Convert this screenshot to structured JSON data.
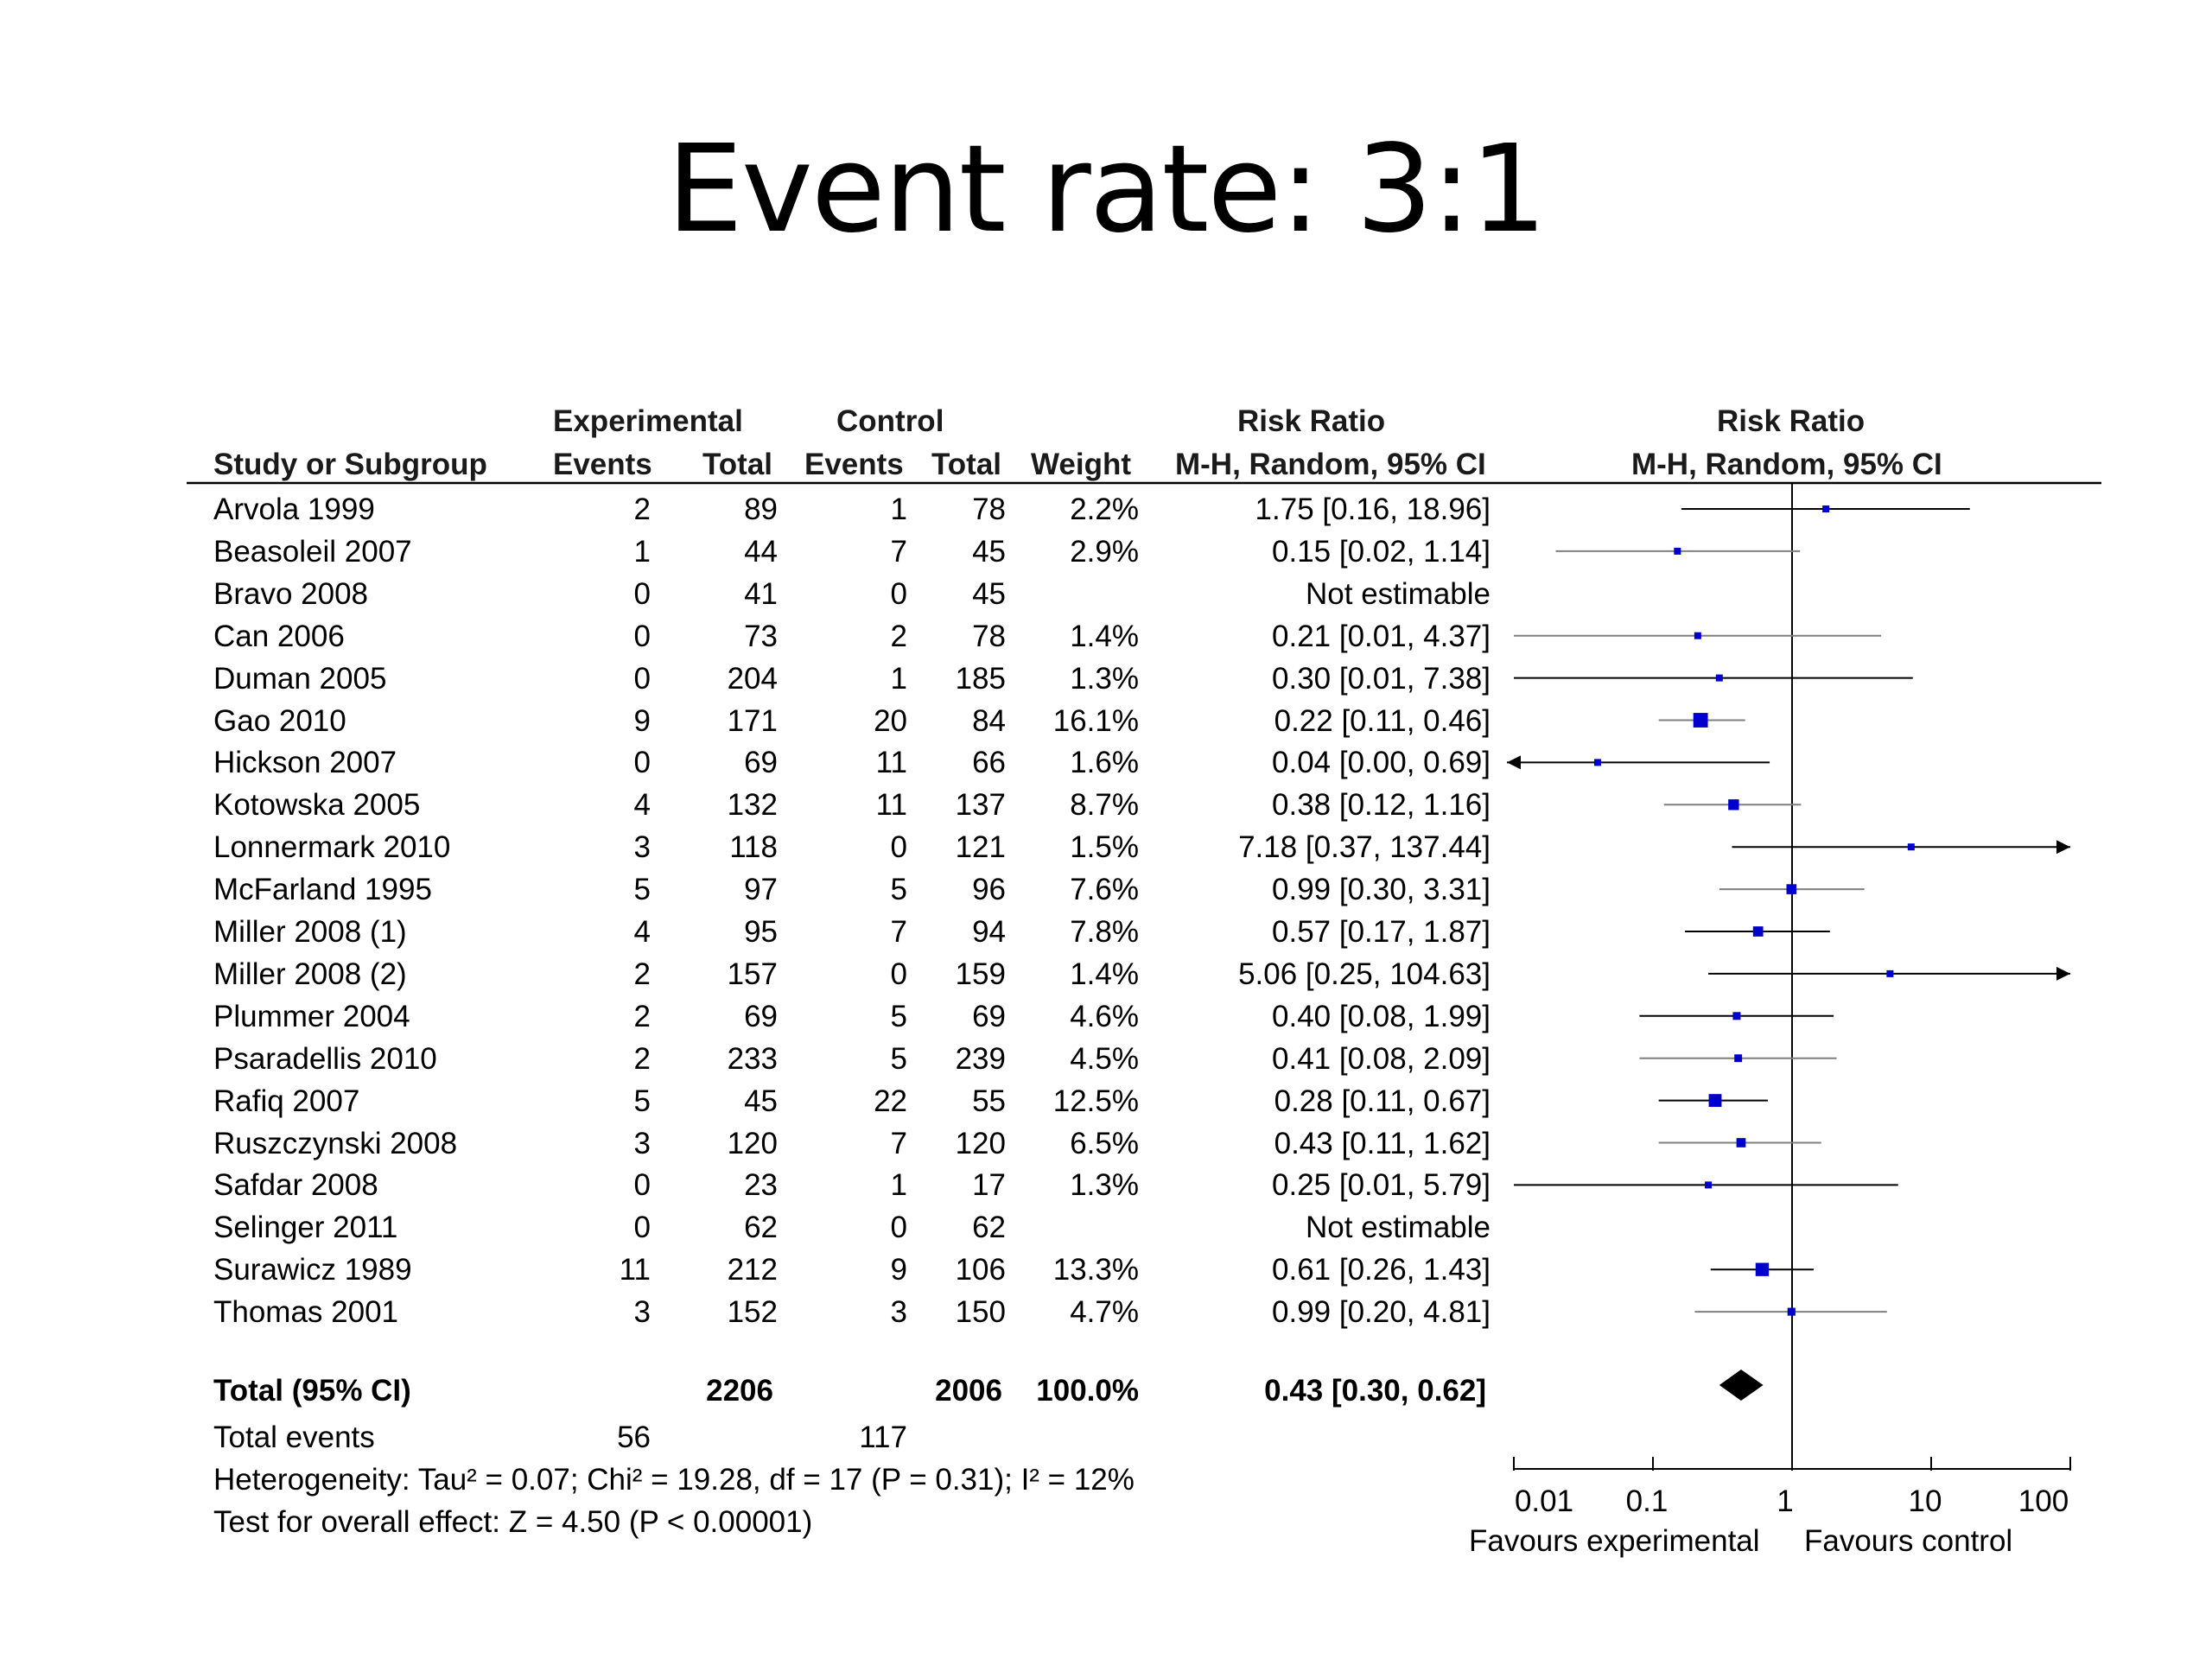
{
  "page": {
    "title": "Event rate: 3:1"
  },
  "headers": {
    "experimental": "Experimental",
    "control": "Control",
    "risk_ratio": "Risk Ratio",
    "study": "Study or Subgroup",
    "events": "Events",
    "total": "Total",
    "weight": "Weight",
    "method": "M-H, Random, 95% CI"
  },
  "chart_data": {
    "type": "forest",
    "measure": "Risk Ratio",
    "method": "M-H, Random, 95% CI",
    "x_scale": "log",
    "xlim": [
      0.01,
      100
    ],
    "x_ticks": [
      "0.01",
      "0.1",
      "1",
      "10",
      "100"
    ],
    "x_tick_values": [
      0.01,
      0.1,
      1,
      10,
      100
    ],
    "reference_line": 1,
    "favours_left": "Favours experimental",
    "favours_right": "Favours control",
    "studies": [
      {
        "name": "Arvola 1999",
        "exp_events": "2",
        "exp_total": "89",
        "ctl_events": "1",
        "ctl_total": "78",
        "weight": "2.2%",
        "ci_text": "1.75 [0.16, 18.96]",
        "rr": 1.75,
        "lo": 0.16,
        "hi": 18.96,
        "w": 2.2
      },
      {
        "name": "Beasoleil 2007",
        "exp_events": "1",
        "exp_total": "44",
        "ctl_events": "7",
        "ctl_total": "45",
        "weight": "2.9%",
        "ci_text": "0.15 [0.02, 1.14]",
        "rr": 0.15,
        "lo": 0.02,
        "hi": 1.14,
        "w": 2.9
      },
      {
        "name": "Bravo 2008",
        "exp_events": "0",
        "exp_total": "41",
        "ctl_events": "0",
        "ctl_total": "45",
        "weight": "",
        "ci_text": "Not estimable",
        "rr": null,
        "lo": null,
        "hi": null,
        "w": null
      },
      {
        "name": "Can 2006",
        "exp_events": "0",
        "exp_total": "73",
        "ctl_events": "2",
        "ctl_total": "78",
        "weight": "1.4%",
        "ci_text": "0.21 [0.01, 4.37]",
        "rr": 0.21,
        "lo": 0.01,
        "hi": 4.37,
        "w": 1.4
      },
      {
        "name": "Duman 2005",
        "exp_events": "0",
        "exp_total": "204",
        "ctl_events": "1",
        "ctl_total": "185",
        "weight": "1.3%",
        "ci_text": "0.30 [0.01, 7.38]",
        "rr": 0.3,
        "lo": 0.01,
        "hi": 7.38,
        "w": 1.3
      },
      {
        "name": "Gao 2010",
        "exp_events": "9",
        "exp_total": "171",
        "ctl_events": "20",
        "ctl_total": "84",
        "weight": "16.1%",
        "ci_text": "0.22 [0.11, 0.46]",
        "rr": 0.22,
        "lo": 0.11,
        "hi": 0.46,
        "w": 16.1
      },
      {
        "name": "Hickson 2007",
        "exp_events": "0",
        "exp_total": "69",
        "ctl_events": "11",
        "ctl_total": "66",
        "weight": "1.6%",
        "ci_text": "0.04 [0.00, 0.69]",
        "rr": 0.04,
        "lo": 0.0,
        "hi": 0.69,
        "w": 1.6
      },
      {
        "name": "Kotowska 2005",
        "exp_events": "4",
        "exp_total": "132",
        "ctl_events": "11",
        "ctl_total": "137",
        "weight": "8.7%",
        "ci_text": "0.38 [0.12, 1.16]",
        "rr": 0.38,
        "lo": 0.12,
        "hi": 1.16,
        "w": 8.7
      },
      {
        "name": "Lonnermark 2010",
        "exp_events": "3",
        "exp_total": "118",
        "ctl_events": "0",
        "ctl_total": "121",
        "weight": "1.5%",
        "ci_text": "7.18 [0.37, 137.44]",
        "rr": 7.18,
        "lo": 0.37,
        "hi": 137.44,
        "w": 1.5
      },
      {
        "name": "McFarland 1995",
        "exp_events": "5",
        "exp_total": "97",
        "ctl_events": "5",
        "ctl_total": "96",
        "weight": "7.6%",
        "ci_text": "0.99 [0.30, 3.31]",
        "rr": 0.99,
        "lo": 0.3,
        "hi": 3.31,
        "w": 7.6
      },
      {
        "name": "Miller 2008 (1)",
        "exp_events": "4",
        "exp_total": "95",
        "ctl_events": "7",
        "ctl_total": "94",
        "weight": "7.8%",
        "ci_text": "0.57 [0.17, 1.87]",
        "rr": 0.57,
        "lo": 0.17,
        "hi": 1.87,
        "w": 7.8
      },
      {
        "name": "Miller 2008 (2)",
        "exp_events": "2",
        "exp_total": "157",
        "ctl_events": "0",
        "ctl_total": "159",
        "weight": "1.4%",
        "ci_text": "5.06 [0.25, 104.63]",
        "rr": 5.06,
        "lo": 0.25,
        "hi": 104.63,
        "w": 1.4
      },
      {
        "name": "Plummer 2004",
        "exp_events": "2",
        "exp_total": "69",
        "ctl_events": "5",
        "ctl_total": "69",
        "weight": "4.6%",
        "ci_text": "0.40 [0.08, 1.99]",
        "rr": 0.4,
        "lo": 0.08,
        "hi": 1.99,
        "w": 4.6
      },
      {
        "name": "Psaradellis 2010",
        "exp_events": "2",
        "exp_total": "233",
        "ctl_events": "5",
        "ctl_total": "239",
        "weight": "4.5%",
        "ci_text": "0.41 [0.08, 2.09]",
        "rr": 0.41,
        "lo": 0.08,
        "hi": 2.09,
        "w": 4.5
      },
      {
        "name": "Rafiq 2007",
        "exp_events": "5",
        "exp_total": "45",
        "ctl_events": "22",
        "ctl_total": "55",
        "weight": "12.5%",
        "ci_text": "0.28 [0.11, 0.67]",
        "rr": 0.28,
        "lo": 0.11,
        "hi": 0.67,
        "w": 12.5
      },
      {
        "name": "Ruszczynski 2008",
        "exp_events": "3",
        "exp_total": "120",
        "ctl_events": "7",
        "ctl_total": "120",
        "weight": "6.5%",
        "ci_text": "0.43 [0.11, 1.62]",
        "rr": 0.43,
        "lo": 0.11,
        "hi": 1.62,
        "w": 6.5
      },
      {
        "name": "Safdar 2008",
        "exp_events": "0",
        "exp_total": "23",
        "ctl_events": "1",
        "ctl_total": "17",
        "weight": "1.3%",
        "ci_text": "0.25 [0.01, 5.79]",
        "rr": 0.25,
        "lo": 0.01,
        "hi": 5.79,
        "w": 1.3
      },
      {
        "name": "Selinger 2011",
        "exp_events": "0",
        "exp_total": "62",
        "ctl_events": "0",
        "ctl_total": "62",
        "weight": "",
        "ci_text": "Not estimable",
        "rr": null,
        "lo": null,
        "hi": null,
        "w": null
      },
      {
        "name": "Surawicz 1989",
        "exp_events": "11",
        "exp_total": "212",
        "ctl_events": "9",
        "ctl_total": "106",
        "weight": "13.3%",
        "ci_text": "0.61 [0.26, 1.43]",
        "rr": 0.61,
        "lo": 0.26,
        "hi": 1.43,
        "w": 13.3
      },
      {
        "name": "Thomas 2001",
        "exp_events": "3",
        "exp_total": "152",
        "ctl_events": "3",
        "ctl_total": "150",
        "weight": "4.7%",
        "ci_text": "0.99 [0.20, 4.81]",
        "rr": 0.99,
        "lo": 0.2,
        "hi": 4.81,
        "w": 4.7
      }
    ],
    "total": {
      "label": "Total (95% CI)",
      "exp_total": "2206",
      "ctl_total": "2006",
      "weight": "100.0%",
      "ci_text": "0.43 [0.30, 0.62]",
      "rr": 0.43,
      "lo": 0.3,
      "hi": 0.62
    },
    "total_events": {
      "label": "Total events",
      "exp": "56",
      "ctl": "117"
    },
    "heterogeneity": "Heterogeneity: Tau² = 0.07; Chi² = 19.28, df = 17 (P = 0.31); I² = 12%",
    "overall_effect": "Test for overall effect: Z = 4.50 (P < 0.00001)"
  },
  "colors": {
    "study_marker": "#0000cc",
    "ci_line_dark": "#000000",
    "ci_line_grey": "#7f7f7f",
    "summary_diamond": "#000000"
  }
}
